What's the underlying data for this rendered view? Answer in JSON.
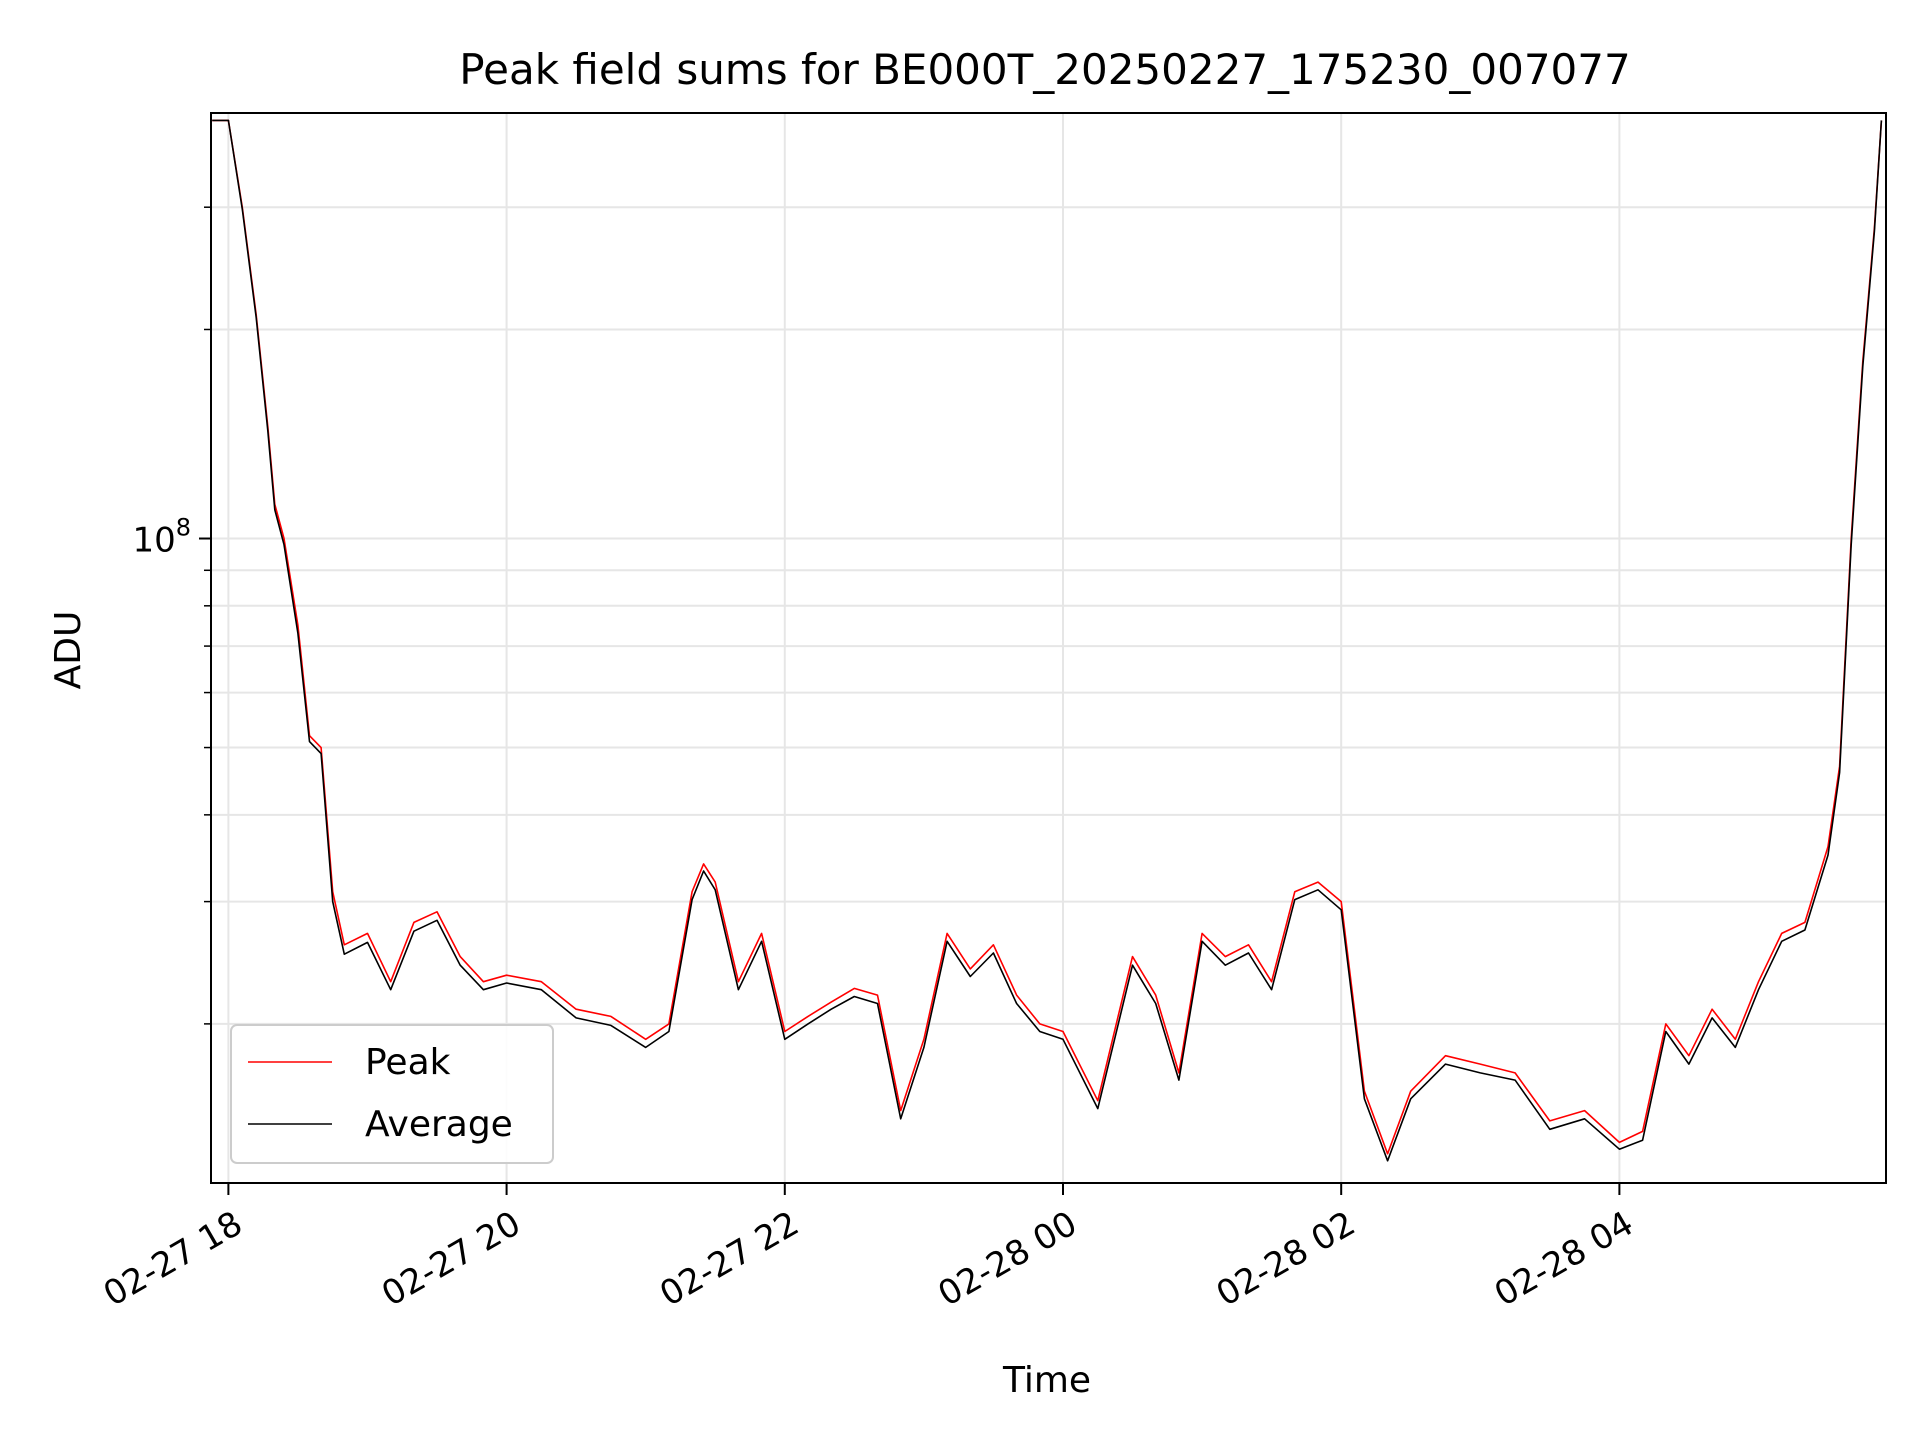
{
  "chart_data": {
    "type": "line",
    "title": "Peak field sums for BE000T_20250227_175230_007077",
    "xlabel": "Time",
    "ylabel": "ADU",
    "y_scale": "log",
    "ylim": [
      11800000,
      410000000
    ],
    "xlim": [
      "2025-02-27T17:52:30",
      "2025-02-28T05:55:00"
    ],
    "x_ticks": [
      {
        "value": "2025-02-27T18:00:00",
        "label": "02-27 18"
      },
      {
        "value": "2025-02-27T20:00:00",
        "label": "02-27 20"
      },
      {
        "value": "2025-02-27T22:00:00",
        "label": "02-27 22"
      },
      {
        "value": "2025-02-28T00:00:00",
        "label": "02-28 00"
      },
      {
        "value": "2025-02-28T02:00:00",
        "label": "02-28 02"
      },
      {
        "value": "2025-02-28T04:00:00",
        "label": "02-28 04"
      }
    ],
    "y_major_tick": {
      "value": 100000000,
      "base": "10",
      "exponent": "8"
    },
    "y_minor_ticks": [
      20000000,
      30000000,
      40000000,
      50000000,
      60000000,
      70000000,
      80000000,
      90000000,
      200000000,
      300000000
    ],
    "grid": true,
    "legend_position": "lower-left",
    "series": [
      {
        "name": "Peak",
        "color": "#ff0000",
        "x": [
          "2025-02-27T17:53:00",
          "2025-02-27T18:00:00",
          "2025-02-27T18:06:00",
          "2025-02-27T18:12:00",
          "2025-02-27T18:17:00",
          "2025-02-27T18:20:00",
          "2025-02-27T18:24:00",
          "2025-02-27T18:30:00",
          "2025-02-27T18:35:00",
          "2025-02-27T18:40:00",
          "2025-02-27T18:45:00",
          "2025-02-27T18:50:00",
          "2025-02-27T19:00:00",
          "2025-02-27T19:10:00",
          "2025-02-27T19:20:00",
          "2025-02-27T19:30:00",
          "2025-02-27T19:40:00",
          "2025-02-27T19:50:00",
          "2025-02-27T20:00:00",
          "2025-02-27T20:15:00",
          "2025-02-27T20:30:00",
          "2025-02-27T20:45:00",
          "2025-02-27T21:00:00",
          "2025-02-27T21:10:00",
          "2025-02-27T21:20:00",
          "2025-02-27T21:25:00",
          "2025-02-27T21:30:00",
          "2025-02-27T21:40:00",
          "2025-02-27T21:50:00",
          "2025-02-27T22:00:00",
          "2025-02-27T22:10:00",
          "2025-02-27T22:20:00",
          "2025-02-27T22:30:00",
          "2025-02-27T22:40:00",
          "2025-02-27T22:50:00",
          "2025-02-27T23:00:00",
          "2025-02-27T23:10:00",
          "2025-02-27T23:20:00",
          "2025-02-27T23:30:00",
          "2025-02-27T23:40:00",
          "2025-02-27T23:50:00",
          "2025-02-28T00:00:00",
          "2025-02-28T00:15:00",
          "2025-02-28T00:30:00",
          "2025-02-28T00:40:00",
          "2025-02-28T00:50:00",
          "2025-02-28T01:00:00",
          "2025-02-28T01:10:00",
          "2025-02-28T01:20:00",
          "2025-02-28T01:30:00",
          "2025-02-28T01:40:00",
          "2025-02-28T01:50:00",
          "2025-02-28T02:00:00",
          "2025-02-28T02:10:00",
          "2025-02-28T02:20:00",
          "2025-02-28T02:30:00",
          "2025-02-28T02:45:00",
          "2025-02-28T03:00:00",
          "2025-02-28T03:15:00",
          "2025-02-28T03:30:00",
          "2025-02-28T03:45:00",
          "2025-02-28T04:00:00",
          "2025-02-28T04:10:00",
          "2025-02-28T04:20:00",
          "2025-02-28T04:30:00",
          "2025-02-28T04:40:00",
          "2025-02-28T04:50:00",
          "2025-02-28T05:00:00",
          "2025-02-28T05:10:00",
          "2025-02-28T05:20:00",
          "2025-02-28T05:30:00",
          "2025-02-28T05:35:00",
          "2025-02-28T05:40:00",
          "2025-02-28T05:45:00",
          "2025-02-28T05:50:00",
          "2025-02-28T05:53:00"
        ],
        "y": [
          400000000,
          400000000,
          300000000,
          210000000,
          145000000,
          112000000,
          100000000,
          75000000,
          52000000,
          50000000,
          31000000,
          26000000,
          27000000,
          23000000,
          28000000,
          29000000,
          25000000,
          23000000,
          23500000,
          23000000,
          21000000,
          20500000,
          19000000,
          20000000,
          31000000,
          34000000,
          32000000,
          23000000,
          27000000,
          19500000,
          20500000,
          21500000,
          22500000,
          22000000,
          15000000,
          19000000,
          27000000,
          24000000,
          26000000,
          22000000,
          20000000,
          19500000,
          15500000,
          25000000,
          22000000,
          17000000,
          27000000,
          25000000,
          26000000,
          23000000,
          31000000,
          32000000,
          30000000,
          16000000,
          13000000,
          16000000,
          18000000,
          17500000,
          17000000,
          14500000,
          15000000,
          13500000,
          14000000,
          20000000,
          18000000,
          21000000,
          19000000,
          23000000,
          27000000,
          28000000,
          36000000,
          47000000,
          100000000,
          180000000,
          280000000,
          400000000
        ]
      },
      {
        "name": "Average",
        "color": "#000000",
        "x": [
          "2025-02-27T17:53:00",
          "2025-02-27T18:00:00",
          "2025-02-27T18:06:00",
          "2025-02-27T18:12:00",
          "2025-02-27T18:17:00",
          "2025-02-27T18:20:00",
          "2025-02-27T18:24:00",
          "2025-02-27T18:30:00",
          "2025-02-27T18:35:00",
          "2025-02-27T18:40:00",
          "2025-02-27T18:45:00",
          "2025-02-27T18:50:00",
          "2025-02-27T19:00:00",
          "2025-02-27T19:10:00",
          "2025-02-27T19:20:00",
          "2025-02-27T19:30:00",
          "2025-02-27T19:40:00",
          "2025-02-27T19:50:00",
          "2025-02-27T20:00:00",
          "2025-02-27T20:15:00",
          "2025-02-27T20:30:00",
          "2025-02-27T20:45:00",
          "2025-02-27T21:00:00",
          "2025-02-27T21:10:00",
          "2025-02-27T21:20:00",
          "2025-02-27T21:25:00",
          "2025-02-27T21:30:00",
          "2025-02-27T21:40:00",
          "2025-02-27T21:50:00",
          "2025-02-27T22:00:00",
          "2025-02-27T22:10:00",
          "2025-02-27T22:20:00",
          "2025-02-27T22:30:00",
          "2025-02-27T22:40:00",
          "2025-02-27T22:50:00",
          "2025-02-27T23:00:00",
          "2025-02-27T23:10:00",
          "2025-02-27T23:20:00",
          "2025-02-27T23:30:00",
          "2025-02-27T23:40:00",
          "2025-02-27T23:50:00",
          "2025-02-28T00:00:00",
          "2025-02-28T00:15:00",
          "2025-02-28T00:30:00",
          "2025-02-28T00:40:00",
          "2025-02-28T00:50:00",
          "2025-02-28T01:00:00",
          "2025-02-28T01:10:00",
          "2025-02-28T01:20:00",
          "2025-02-28T01:30:00",
          "2025-02-28T01:40:00",
          "2025-02-28T01:50:00",
          "2025-02-28T02:00:00",
          "2025-02-28T02:10:00",
          "2025-02-28T02:20:00",
          "2025-02-28T02:30:00",
          "2025-02-28T02:45:00",
          "2025-02-28T03:00:00",
          "2025-02-28T03:15:00",
          "2025-02-28T03:30:00",
          "2025-02-28T03:45:00",
          "2025-02-28T04:00:00",
          "2025-02-28T04:10:00",
          "2025-02-28T04:20:00",
          "2025-02-28T04:30:00",
          "2025-02-28T04:40:00",
          "2025-02-28T04:50:00",
          "2025-02-28T05:00:00",
          "2025-02-28T05:10:00",
          "2025-02-28T05:20:00",
          "2025-02-28T05:30:00",
          "2025-02-28T05:35:00",
          "2025-02-28T05:40:00",
          "2025-02-28T05:45:00",
          "2025-02-28T05:50:00",
          "2025-02-28T05:53:00"
        ],
        "y": [
          400000000,
          400000000,
          298000000,
          208000000,
          143000000,
          110000000,
          98000000,
          73000000,
          51000000,
          49000000,
          30000000,
          25200000,
          26200000,
          22400000,
          27200000,
          28200000,
          24300000,
          22400000,
          22900000,
          22400000,
          20400000,
          19900000,
          18500000,
          19500000,
          30200000,
          33200000,
          31200000,
          22400000,
          26300000,
          19000000,
          20000000,
          21000000,
          21900000,
          21400000,
          14600000,
          18500000,
          26300000,
          23400000,
          25300000,
          21400000,
          19500000,
          19000000,
          15100000,
          24300000,
          21400000,
          16600000,
          26300000,
          24300000,
          25300000,
          22400000,
          30200000,
          31200000,
          29200000,
          15600000,
          12700000,
          15600000,
          17500000,
          17000000,
          16600000,
          14100000,
          14600000,
          13200000,
          13600000,
          19500000,
          17500000,
          20400000,
          18500000,
          22400000,
          26300000,
          27300000,
          35000000,
          46000000,
          98000000,
          177000000,
          277000000,
          400000000
        ]
      }
    ]
  }
}
